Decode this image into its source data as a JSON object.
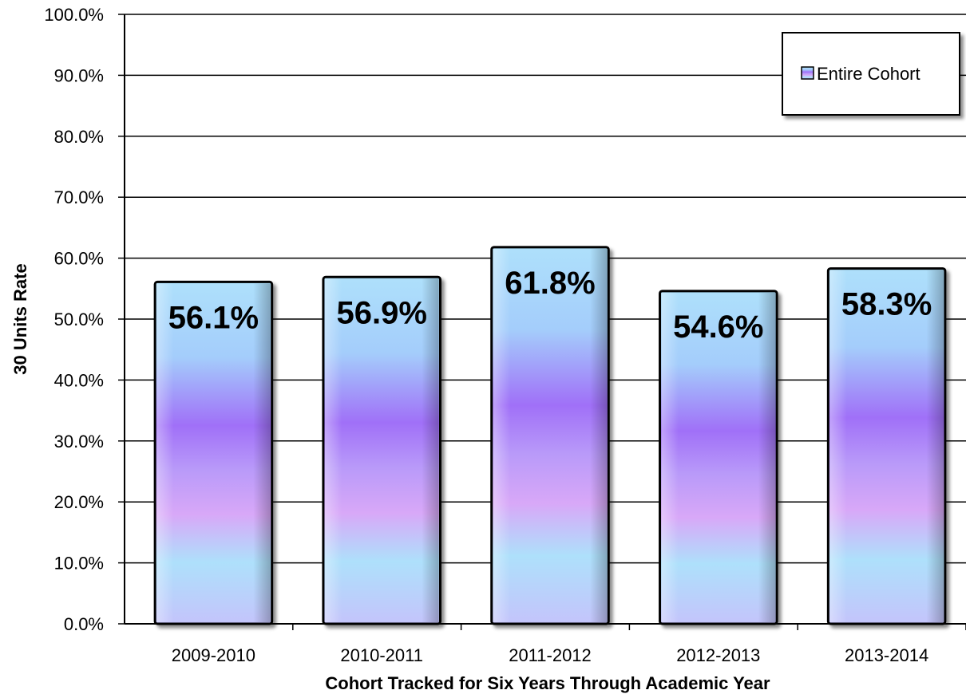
{
  "chart_data": {
    "type": "bar",
    "categories": [
      "2009-2010",
      "2010-2011",
      "2011-2012",
      "2012-2013",
      "2013-2014"
    ],
    "series": [
      {
        "name": "Entire Cohort",
        "values": [
          56.1,
          56.9,
          61.8,
          54.6,
          58.3
        ],
        "data_labels": [
          "56.1%",
          "56.9%",
          "61.8%",
          "54.6%",
          "58.3%"
        ]
      }
    ],
    "y_ticks": [
      "0.0%",
      "10.0%",
      "20.0%",
      "30.0%",
      "40.0%",
      "50.0%",
      "60.0%",
      "70.0%",
      "80.0%",
      "90.0%",
      "100.0%"
    ],
    "xlabel": "Cohort Tracked for Six Years Through Academic Year",
    "ylabel": "30 Units Rate",
    "ylim": [
      0,
      100
    ],
    "grid": true,
    "legend_position": "top-right",
    "colors": {
      "bar_light_blue": "#aee0fb",
      "bar_purple": "#a070f8",
      "bar_pink": "#d8a8f8",
      "bar_edge": "#000000",
      "gridline": "#000000"
    }
  }
}
